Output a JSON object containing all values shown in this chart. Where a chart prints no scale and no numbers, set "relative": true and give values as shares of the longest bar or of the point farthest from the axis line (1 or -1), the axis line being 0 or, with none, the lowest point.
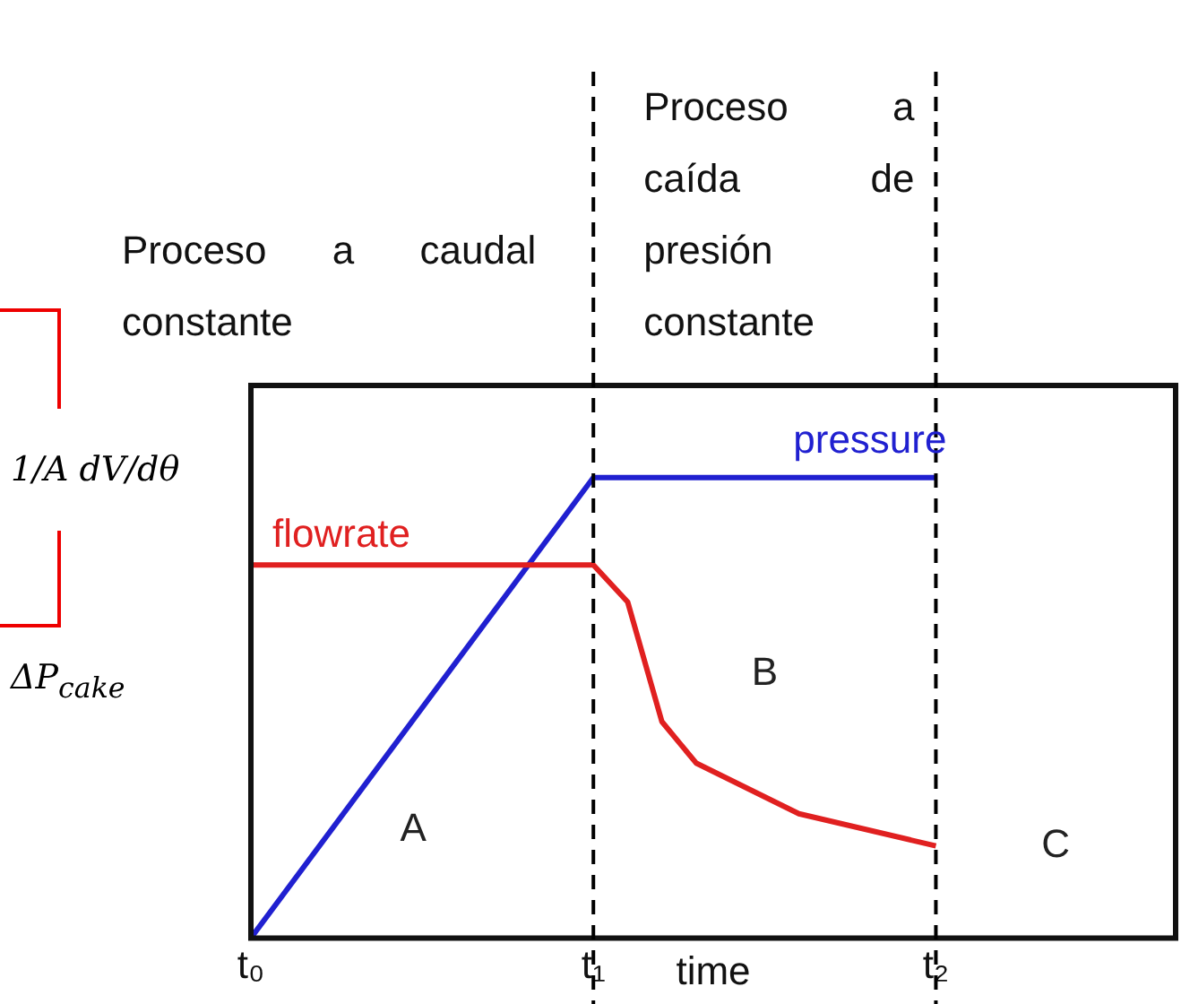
{
  "chart_data": {
    "type": "line",
    "relative": true,
    "xlabel": "time",
    "ylabel": "1/A dV/dθ\nΔP$_{cake}$",
    "categories": [
      "t₀",
      null,
      null,
      null,
      null,
      null,
      null,
      null,
      null,
      null,
      "t₁",
      null,
      null,
      null,
      null,
      null,
      null,
      null,
      null,
      null,
      "t₂",
      null,
      null,
      null,
      null,
      null,
      null,
      null
    ],
    "series": [
      {
        "name": "flowrate",
        "color": "#e02020",
        "values": [
          0.81,
          null,
          null,
          null,
          null,
          null,
          null,
          null,
          null,
          null,
          0.81,
          0.73,
          0.47,
          0.38,
          null,
          null,
          0.27,
          null,
          null,
          null,
          0.2,
          null,
          null,
          null,
          null,
          null,
          null,
          null
        ]
      },
      {
        "name": "pressure",
        "color": "#2020d0",
        "values": [
          0,
          null,
          null,
          null,
          null,
          null,
          null,
          null,
          null,
          null,
          1,
          null,
          null,
          null,
          null,
          null,
          null,
          null,
          null,
          null,
          1,
          null,
          null,
          null,
          null,
          null,
          null,
          null
        ]
      }
    ],
    "ref_lines": [
      {
        "axis": "x",
        "value": "t₁",
        "color": "#000000",
        "line_style": "dashed"
      },
      {
        "axis": "x",
        "value": "t₂",
        "color": "#000000",
        "line_style": "dashed"
      }
    ],
    "annotations": [
      "Proceso a caudal constante",
      "Proceso a caída de presión constante",
      "A",
      "B",
      "C"
    ],
    "grid": false,
    "legend": false,
    "marker": "none",
    "line_style": "solid"
  }
}
